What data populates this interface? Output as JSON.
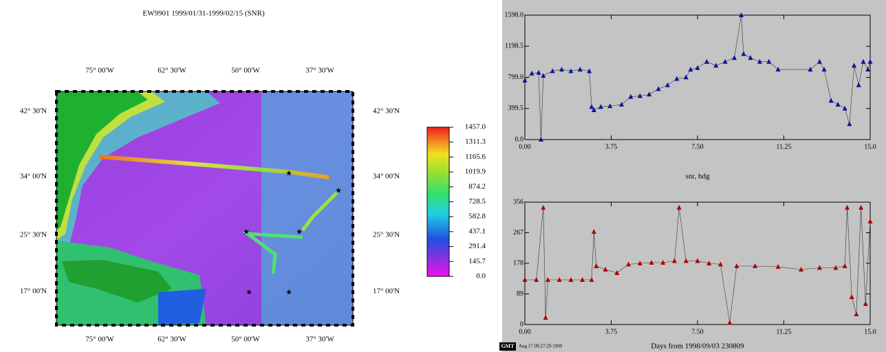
{
  "map": {
    "title": "EW9901 1999/01/31-1999/02/15 (SNR)",
    "lon_labels": [
      "75° 00'W",
      "62° 30'W",
      "50° 00'W",
      "37° 30'W"
    ],
    "lat_labels": [
      "42° 30'N",
      "34° 00'N",
      "25° 30'N",
      "17° 00'N"
    ],
    "colorbar": {
      "ticks": [
        {
          "value": 0,
          "label": "0.0"
        },
        145.7,
        291.4,
        437.1,
        582.8,
        728.5,
        874.2,
        1019.9,
        1165.6,
        1311.3,
        {
          "value": 1457,
          "label": "1457.0"
        }
      ]
    }
  },
  "chart_data": [
    {
      "type": "line",
      "xlim": [
        0,
        15
      ],
      "ylim": [
        0,
        1598
      ],
      "xticks": [
        {
          "value": 0,
          "label": "0.00"
        },
        3.75,
        {
          "value": 7.5,
          "label": "7.50"
        },
        11.25,
        {
          "value": 15,
          "label": "15.0"
        }
      ],
      "yticks": [
        {
          "value": 0,
          "label": "0.0"
        },
        399.5,
        {
          "value": 799,
          "label": "799.0"
        },
        1198.5,
        {
          "value": 1598,
          "label": "1598.0"
        }
      ],
      "x": [
        0,
        0.3,
        0.6,
        0.7,
        0.8,
        1.2,
        1.6,
        2.0,
        2.4,
        2.8,
        2.9,
        3.0,
        3.3,
        3.7,
        4.2,
        4.6,
        5.0,
        5.4,
        5.8,
        6.2,
        6.6,
        7.0,
        7.2,
        7.5,
        7.9,
        8.3,
        8.7,
        9.1,
        9.4,
        9.5,
        9.8,
        10.2,
        10.6,
        11.0,
        12.4,
        12.8,
        13.0,
        13.3,
        13.6,
        13.9,
        14.1,
        14.3,
        14.5,
        14.7,
        14.9,
        15.0
      ],
      "series": [
        {
          "color": "#0a14a0",
          "values": [
            760,
            850,
            860,
            0,
            820,
            880,
            900,
            880,
            900,
            880,
            420,
            380,
            420,
            430,
            450,
            550,
            560,
            580,
            650,
            700,
            780,
            800,
            900,
            920,
            1000,
            950,
            1000,
            1050,
            1598,
            1100,
            1050,
            1000,
            1000,
            900,
            900,
            1000,
            900,
            500,
            450,
            400,
            200,
            950,
            700,
            1000,
            900,
            1000
          ]
        }
      ]
    },
    {
      "type": "line",
      "title": "snr, hdg",
      "xlabel": "Days from 1998/09/03 230809",
      "xlim": [
        0,
        15
      ],
      "ylim": [
        0,
        356
      ],
      "xticks": [
        {
          "value": 0,
          "label": "0.00"
        },
        3.75,
        {
          "value": 7.5,
          "label": "7.50"
        },
        11.25,
        {
          "value": 15,
          "label": "15.0"
        }
      ],
      "yticks": [
        0,
        89,
        178,
        267,
        356
      ],
      "x": [
        0,
        0.5,
        0.8,
        0.9,
        1.0,
        1.5,
        2.0,
        2.5,
        2.9,
        3.0,
        3.1,
        3.5,
        4.0,
        4.5,
        5.0,
        5.5,
        6.0,
        6.5,
        6.7,
        7.0,
        7.5,
        8.0,
        8.5,
        8.9,
        9.2,
        10.0,
        11.0,
        12.0,
        12.8,
        13.5,
        13.9,
        14.0,
        14.2,
        14.4,
        14.6,
        14.8,
        15.0
      ],
      "series": [
        {
          "color": "#b00000",
          "values": [
            130,
            130,
            340,
            20,
            130,
            130,
            130,
            130,
            130,
            270,
            170,
            160,
            150,
            175,
            178,
            180,
            180,
            185,
            340,
            185,
            185,
            178,
            175,
            5,
            170,
            170,
            168,
            160,
            165,
            165,
            170,
            340,
            80,
            30,
            340,
            60,
            300
          ]
        }
      ]
    }
  ],
  "footer": {
    "logo": "GMT",
    "timestamp": "Aug 17 09:27:29 1999"
  }
}
